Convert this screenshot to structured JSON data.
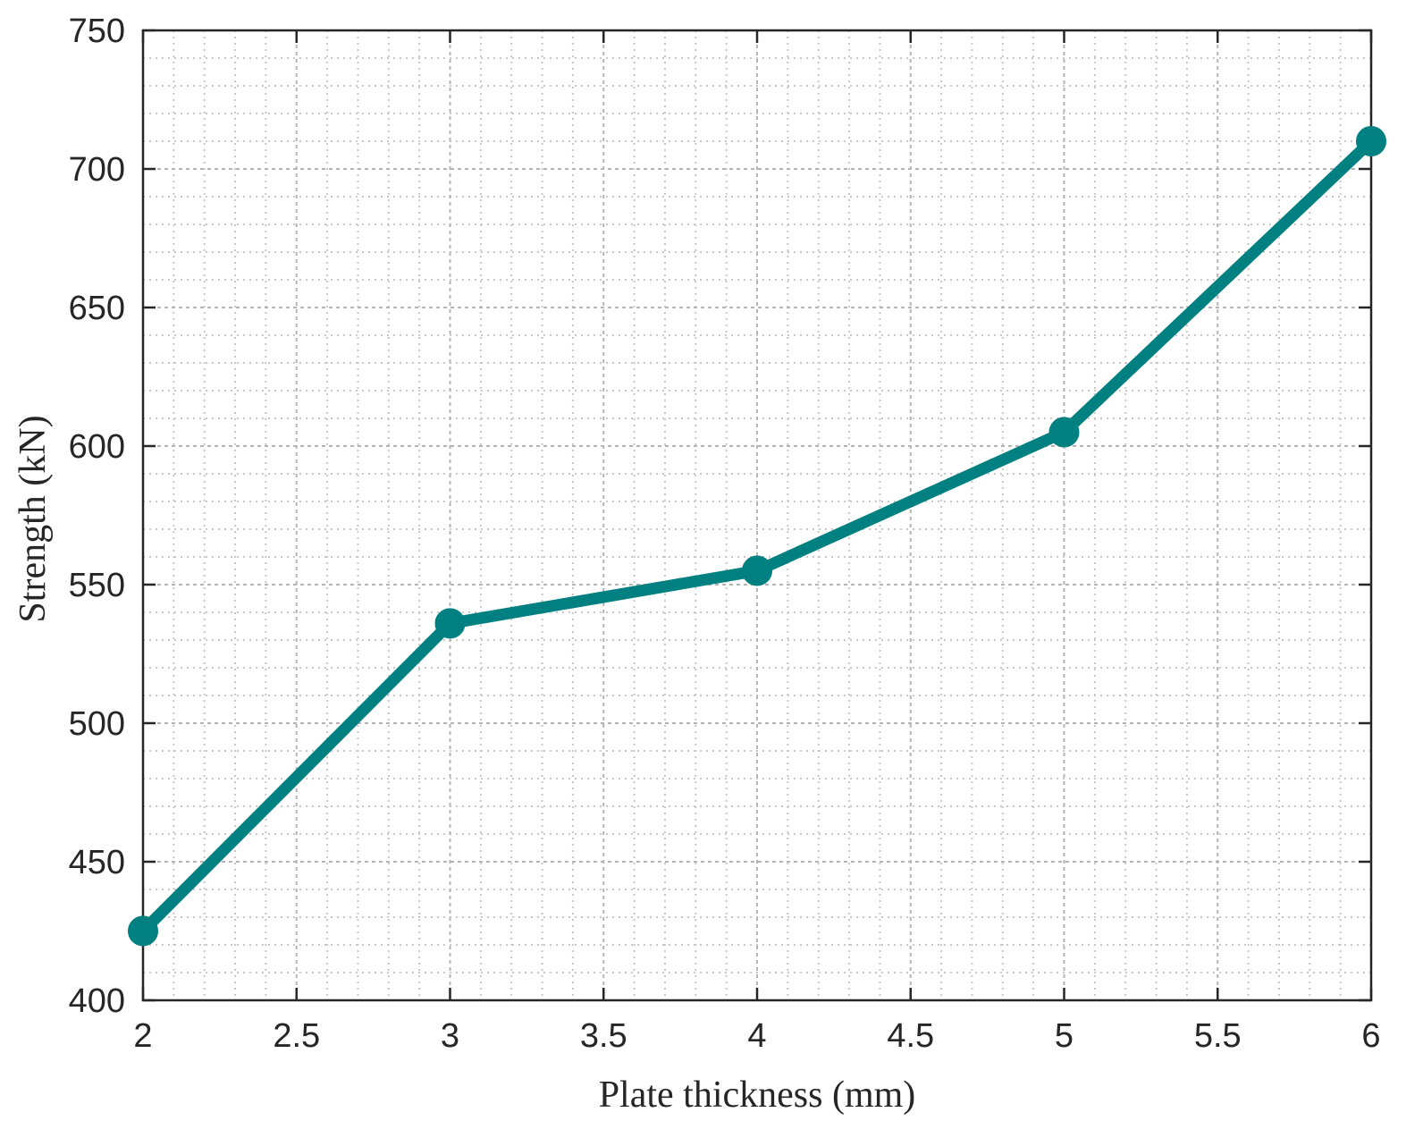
{
  "chart_data": {
    "type": "line",
    "title": "",
    "xlabel": "Plate thickness (mm)",
    "ylabel": "Strength (kN)",
    "xlim": [
      2,
      6
    ],
    "ylim": [
      400,
      750
    ],
    "x_ticks": [
      2,
      2.5,
      3,
      3.5,
      4,
      4.5,
      5,
      5.5,
      6
    ],
    "x_tick_labels": [
      "2",
      "2.5",
      "3",
      "3.5",
      "4",
      "4.5",
      "5",
      "5.5",
      "6"
    ],
    "y_ticks": [
      400,
      450,
      500,
      550,
      600,
      650,
      700,
      750
    ],
    "y_tick_labels": [
      "400",
      "450",
      "500",
      "550",
      "600",
      "650",
      "700",
      "750"
    ],
    "grid": true,
    "minor_grid": true,
    "minor_x_step": 0.1,
    "minor_y_step": 10,
    "series": [
      {
        "x": [
          2,
          3,
          4,
          5,
          6
        ],
        "y": [
          425,
          536,
          555,
          605,
          710
        ],
        "color": "#008080",
        "marker": "circle"
      }
    ]
  }
}
